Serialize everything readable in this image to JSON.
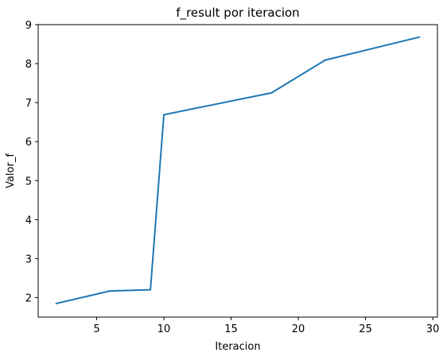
{
  "chart_data": {
    "type": "line",
    "title": "f_result por iteracion",
    "xlabel": "Iteracion",
    "ylabel": "Valor_f",
    "xlim": [
      0.65,
      30.35
    ],
    "ylim": [
      1.5,
      9.0
    ],
    "xticks": [
      5,
      10,
      15,
      20,
      25,
      30
    ],
    "yticks": [
      2,
      3,
      4,
      5,
      6,
      7,
      8,
      9
    ],
    "grid": false,
    "series": [
      {
        "color": "#1f77b4",
        "x": [
          2,
          6,
          9,
          10,
          18,
          22,
          29
        ],
        "y": [
          1.85,
          2.17,
          2.2,
          6.69,
          7.25,
          8.09,
          8.68
        ]
      }
    ]
  }
}
